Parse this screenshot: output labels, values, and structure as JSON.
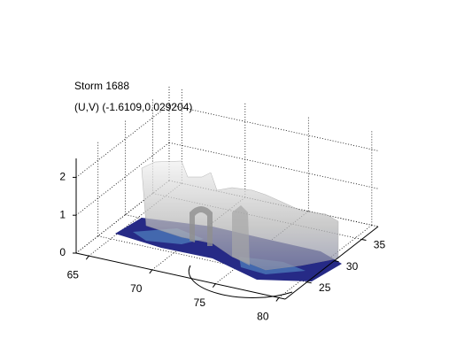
{
  "chart_data": {
    "type": "surface3d",
    "title": "Storm 1688",
    "subtitle": "(U,V) (-1.6109,0.029204)",
    "xlim": [
      64,
      80.5
    ],
    "xticks": [
      65,
      70,
      75,
      80
    ],
    "ylim": [
      21,
      38
    ],
    "yticks": [
      25,
      30,
      35
    ],
    "zlim": [
      0,
      2.5
    ],
    "zticks": [
      0,
      1,
      2
    ],
    "grid": true
  }
}
